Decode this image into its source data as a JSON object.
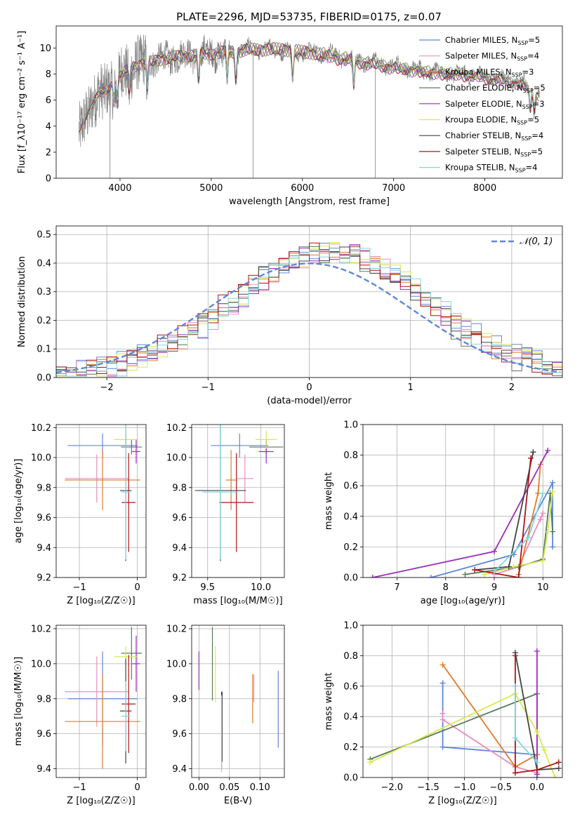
{
  "title": "PLATE=2296, MJD=53735, FIBERID=0175, z=0.07",
  "colors": {
    "chabrier_miles": "#5f86d8",
    "salpeter_miles": "#e88fbf",
    "kroupa_miles": "#e07b2a",
    "chabrier_elodie": "#5a7a5a",
    "salpeter_elodie": "#9b30b8",
    "kroupa_elodie": "#d6ea50",
    "chabrier_stelib": "#444444",
    "salpeter_stelib": "#b01515",
    "kroupa_stelib": "#7fd6e0",
    "data": "#808080"
  },
  "chart_data": [
    {
      "id": "spectrum",
      "type": "line",
      "xlabel": "wavelength [Angstrom, rest frame]",
      "ylabel": "Flux [f_λ10⁻¹⁷ erg cm⁻² s⁻¹ A⁻¹]",
      "xlim": [
        3300,
        8850
      ],
      "ylim": [
        0,
        11.7
      ],
      "xticks": [
        4000,
        5000,
        6000,
        7000,
        8000
      ],
      "yticks": [
        0,
        2,
        4,
        6,
        8,
        10
      ],
      "grid": false,
      "legend_position": "top-right",
      "legend": [
        {
          "pre": "Chabrier MILES, N",
          "sub": "SSP",
          "post": "=5",
          "color": "#5f86d8"
        },
        {
          "pre": "Salpeter MILES, N",
          "sub": "SSP",
          "post": "=4",
          "color": "#e88fbf"
        },
        {
          "pre": "Kroupa MILES, N",
          "sub": "SSP",
          "post": "=3",
          "color": "#e07b2a"
        },
        {
          "pre": "Chabrier ELODIE, N",
          "sub": "SSP",
          "post": "=5",
          "color": "#5a7a5a"
        },
        {
          "pre": "Salpeter ELODIE, N",
          "sub": "SSP",
          "post": "=3",
          "color": "#9b30b8"
        },
        {
          "pre": "Kroupa ELODIE, N",
          "sub": "SSP",
          "post": "=5",
          "color": "#d6ea50"
        },
        {
          "pre": "Chabrier STELIB, N",
          "sub": "SSP",
          "post": "=4",
          "color": "#444444"
        },
        {
          "pre": "Salpeter STELIB, N",
          "sub": "SSP",
          "post": "=5",
          "color": "#b01515"
        },
        {
          "pre": "Kroupa STELIB, N",
          "sub": "SSP",
          "post": "=4",
          "color": "#7fd6e0"
        }
      ],
      "continuum": [
        [
          3550,
          3.5
        ],
        [
          3650,
          5.2
        ],
        [
          3750,
          6.3
        ],
        [
          3850,
          6.8
        ],
        [
          3950,
          7.5
        ],
        [
          4100,
          8.5
        ],
        [
          4300,
          8.9
        ],
        [
          4500,
          9.2
        ],
        [
          4700,
          9.4
        ],
        [
          5000,
          9.6
        ],
        [
          5200,
          9.7
        ],
        [
          5500,
          9.9
        ],
        [
          5800,
          9.9
        ],
        [
          6000,
          9.7
        ],
        [
          6300,
          9.5
        ],
        [
          6600,
          9.1
        ],
        [
          7000,
          8.6
        ],
        [
          7400,
          8.2
        ],
        [
          7800,
          8.0
        ],
        [
          8200,
          7.6
        ],
        [
          8400,
          7.3
        ],
        [
          8600,
          6.4
        ]
      ],
      "absorption_lines": [
        3934,
        3969,
        4102,
        4300,
        4861,
        5175,
        5270,
        5892,
        6563,
        8498,
        8542,
        8662
      ],
      "spikes": [
        3890,
        5460,
        6800
      ]
    },
    {
      "id": "residual_histogram",
      "type": "histogram",
      "xlabel": "(data-model)/error",
      "ylabel": "Normed distribution",
      "xlim": [
        -2.5,
        2.5
      ],
      "ylim": [
        0,
        0.53
      ],
      "xticks": [
        -2,
        -1,
        0,
        1,
        2
      ],
      "yticks": [
        0.0,
        0.1,
        0.2,
        0.3,
        0.4,
        0.5
      ],
      "grid": true,
      "legend": "𝒩(0, 1)",
      "bin_width": 0.1
    },
    {
      "id": "age_vs_Z",
      "type": "scatter",
      "xlabel": "Z [log₁₀(Z/Z☉)]",
      "ylabel": "age  [log₁₀(age/yr)]",
      "xlim": [
        -1.4,
        0.15
      ],
      "ylim": [
        9.2,
        10.22
      ],
      "xticks": [
        -1,
        0
      ],
      "yticks": [
        9.2,
        9.4,
        9.6,
        9.8,
        10.0,
        10.2
      ],
      "points": [
        {
          "series": "Chabrier MILES",
          "x": -0.6,
          "xerr": 0.6,
          "y": 10.08,
          "yerr": 0.08
        },
        {
          "series": "Salpeter MILES",
          "x": -0.7,
          "xerr": 0.55,
          "y": 9.86,
          "yerr": 0.16
        },
        {
          "series": "Kroupa MILES",
          "x": -0.6,
          "xerr": 0.65,
          "y": 9.85,
          "yerr": 0.2
        },
        {
          "series": "Chabrier ELODIE",
          "x": -0.1,
          "xerr": 0.18,
          "y": 10.07,
          "yerr": 0.05
        },
        {
          "series": "Salpeter ELODIE",
          "x": -0.02,
          "xerr": 0.07,
          "y": 10.04,
          "yerr": 0.08
        },
        {
          "series": "Kroupa ELODIE",
          "x": -0.2,
          "xerr": 0.2,
          "y": 10.12,
          "yerr": 0.06
        },
        {
          "series": "Chabrier STELIB",
          "x": -0.2,
          "xerr": 0.1,
          "y": 9.78,
          "yerr": 0.47
        },
        {
          "series": "Salpeter STELIB",
          "x": -0.15,
          "xerr": 0.12,
          "y": 9.7,
          "yerr": 0.33
        },
        {
          "series": "Kroupa STELIB",
          "x": -0.2,
          "xerr": 0.08,
          "y": 9.77,
          "yerr": 0.45
        }
      ]
    },
    {
      "id": "age_vs_mass",
      "type": "scatter",
      "xlabel": "mass [log₁₀(M/M☉)]",
      "ylabel": "",
      "xlim": [
        9.35,
        10.22
      ],
      "ylim": [
        9.2,
        10.22
      ],
      "xticks": [
        9.5,
        10.0
      ],
      "yticks": [
        9.2,
        9.4,
        9.6,
        9.8,
        10.0,
        10.2
      ],
      "points": [
        {
          "series": "Chabrier MILES",
          "x": 9.8,
          "xerr": 0.27,
          "y": 10.08,
          "yerr": 0.08
        },
        {
          "series": "Salpeter MILES",
          "x": 9.85,
          "xerr": 0.08,
          "y": 9.86,
          "yerr": 0.16
        },
        {
          "series": "Kroupa MILES",
          "x": 9.72,
          "xerr": 0.05,
          "y": 9.85,
          "yerr": 0.2
        },
        {
          "series": "Chabrier ELODIE",
          "x": 10.05,
          "xerr": 0.16,
          "y": 10.07,
          "yerr": 0.05
        },
        {
          "series": "Salpeter ELODIE",
          "x": 10.05,
          "xerr": 0.07,
          "y": 10.04,
          "yerr": 0.08
        },
        {
          "series": "Kroupa ELODIE",
          "x": 10.05,
          "xerr": 0.1,
          "y": 10.12,
          "yerr": 0.06
        },
        {
          "series": "Chabrier STELIB",
          "x": 9.62,
          "xerr": 0.24,
          "y": 9.78,
          "yerr": 0.47
        },
        {
          "series": "Salpeter STELIB",
          "x": 9.77,
          "xerr": 0.16,
          "y": 9.7,
          "yerr": 0.33
        },
        {
          "series": "Kroupa STELIB",
          "x": 9.62,
          "xerr": 0.17,
          "y": 9.77,
          "yerr": 0.45
        }
      ]
    },
    {
      "id": "weight_vs_age",
      "type": "line",
      "xlabel": "age  [log₁₀(age/yr)]",
      "ylabel": "mass weight",
      "xlim": [
        6.3,
        10.4
      ],
      "ylim": [
        0,
        1.0
      ],
      "xticks": [
        7,
        8,
        9,
        10
      ],
      "yticks": [
        0.0,
        0.2,
        0.4,
        0.6,
        0.8,
        1.0
      ],
      "series": [
        {
          "name": "Chabrier MILES",
          "points": [
            [
              7.7,
              0.0
            ],
            [
              9.4,
              0.15
            ],
            [
              10.2,
              0.62
            ],
            [
              10.2,
              0.2
            ]
          ]
        },
        {
          "name": "Salpeter MILES",
          "points": [
            [
              9.0,
              0.02
            ],
            [
              9.5,
              0.07
            ],
            [
              10.0,
              0.42
            ],
            [
              9.95,
              0.38
            ]
          ]
        },
        {
          "name": "Kroupa MILES",
          "points": [
            [
              9.5,
              0.02
            ],
            [
              9.9,
              0.55
            ],
            [
              9.95,
              0.74
            ]
          ]
        },
        {
          "name": "Chabrier ELODIE",
          "points": [
            [
              8.4,
              0.02
            ],
            [
              9.5,
              0.07
            ],
            [
              10.0,
              0.12
            ],
            [
              10.15,
              0.55
            ],
            [
              10.2,
              0.3
            ]
          ]
        },
        {
          "name": "Salpeter ELODIE",
          "points": [
            [
              6.5,
              0.0
            ],
            [
              9.0,
              0.17
            ],
            [
              10.1,
              0.83
            ]
          ]
        },
        {
          "name": "Kroupa ELODIE",
          "points": [
            [
              8.8,
              0.02
            ],
            [
              9.4,
              0.07
            ],
            [
              10.0,
              0.11
            ],
            [
              10.1,
              0.3
            ],
            [
              10.2,
              0.56
            ]
          ]
        },
        {
          "name": "Chabrier STELIB",
          "points": [
            [
              8.6,
              0.05
            ],
            [
              9.3,
              0.07
            ],
            [
              9.8,
              0.82
            ]
          ]
        },
        {
          "name": "Salpeter STELIB",
          "points": [
            [
              8.6,
              0.05
            ],
            [
              9.5,
              0.0
            ],
            [
              9.75,
              0.78
            ]
          ]
        },
        {
          "name": "Kroupa STELIB",
          "points": [
            [
              9.0,
              0.04
            ],
            [
              9.7,
              0.26
            ],
            [
              10.0,
              0.55
            ]
          ]
        }
      ]
    },
    {
      "id": "mass_vs_Z",
      "type": "scatter",
      "xlabel": "Z [log₁₀(Z/Z☉)]",
      "ylabel": "mass [log₁₀(M/M☉)]",
      "xlim": [
        -1.4,
        0.15
      ],
      "ylim": [
        9.35,
        10.22
      ],
      "xticks": [
        -1,
        0
      ],
      "yticks": [
        9.4,
        9.6,
        9.8,
        10.0,
        10.2
      ],
      "points": [
        {
          "series": "Chabrier MILES",
          "x": -0.6,
          "xerr": 0.6,
          "y": 9.8,
          "yerr": 0.27
        },
        {
          "series": "Salpeter MILES",
          "x": -0.7,
          "xerr": 0.55,
          "y": 9.84,
          "yerr": 0.2
        },
        {
          "series": "Kroupa MILES",
          "x": -0.6,
          "xerr": 0.65,
          "y": 9.67,
          "yerr": 0.27
        },
        {
          "series": "Chabrier ELODIE",
          "x": -0.1,
          "xerr": 0.18,
          "y": 10.06,
          "yerr": 0.15
        },
        {
          "series": "Salpeter ELODIE",
          "x": -0.02,
          "xerr": 0.07,
          "y": 10.0,
          "yerr": 0.16
        },
        {
          "series": "Kroupa ELODIE",
          "x": -0.2,
          "xerr": 0.2,
          "y": 10.04,
          "yerr": 0.06
        },
        {
          "series": "Chabrier STELIB",
          "x": -0.2,
          "xerr": 0.1,
          "y": 9.73,
          "yerr": 0.3
        },
        {
          "series": "Salpeter STELIB",
          "x": -0.15,
          "xerr": 0.12,
          "y": 9.77,
          "yerr": 0.28
        },
        {
          "series": "Kroupa STELIB",
          "x": -0.2,
          "xerr": 0.08,
          "y": 9.7,
          "yerr": 0.2
        }
      ]
    },
    {
      "id": "mass_vs_EBV",
      "type": "scatter",
      "xlabel": "E(B-V)",
      "ylabel": "",
      "xlim": [
        -0.012,
        0.14
      ],
      "ylim": [
        9.35,
        10.22
      ],
      "xticks": [
        0.0,
        0.05,
        0.1
      ],
      "yticks": [
        9.4,
        9.6,
        9.8,
        10.0,
        10.2
      ],
      "points": [
        {
          "series": "Chabrier MILES",
          "x": 0.13,
          "y": 9.74,
          "yerr": 0.22
        },
        {
          "series": "Salpeter MILES",
          "x": 0.09,
          "y": 9.86,
          "yerr": 0.08
        },
        {
          "series": "Kroupa MILES",
          "x": 0.088,
          "y": 9.8,
          "yerr": 0.14
        },
        {
          "series": "Chabrier ELODIE",
          "x": 0.022,
          "y": 10.0,
          "yerr": 0.21
        },
        {
          "series": "Salpeter ELODIE",
          "x": 0.0,
          "y": 9.96,
          "yerr": 0.11
        },
        {
          "series": "Kroupa ELODIE",
          "x": 0.027,
          "y": 9.94,
          "yerr": 0.16
        },
        {
          "series": "Chabrier STELIB",
          "x": 0.038,
          "y": 9.64,
          "yerr": 0.2
        },
        {
          "series": "Salpeter STELIB",
          "x": 0.037,
          "y": 9.62,
          "yerr": 0.22
        },
        {
          "series": "Kroupa STELIB",
          "x": 0.037,
          "y": 9.6,
          "yerr": 0.22
        }
      ]
    },
    {
      "id": "weight_vs_Z",
      "type": "line",
      "xlabel": "Z [log₁₀(Z/Z☉)]",
      "ylabel": "mass weight",
      "xlim": [
        -2.4,
        0.35
      ],
      "ylim": [
        0,
        1.0
      ],
      "xticks": [
        -2.0,
        -1.5,
        -1.0,
        -0.5,
        0.0
      ],
      "yticks": [
        0.0,
        0.2,
        0.4,
        0.6,
        0.8,
        1.0
      ],
      "series": [
        {
          "name": "Chabrier MILES",
          "points": [
            [
              -1.3,
              0.62
            ],
            [
              -1.3,
              0.2
            ],
            [
              0.0,
              0.15
            ],
            [
              0.0,
              0.0
            ]
          ]
        },
        {
          "name": "Salpeter MILES",
          "points": [
            [
              -1.3,
              0.42
            ],
            [
              -1.3,
              0.38
            ],
            [
              -0.3,
              0.07
            ],
            [
              0.0,
              0.03
            ]
          ]
        },
        {
          "name": "Kroupa MILES",
          "points": [
            [
              -1.3,
              0.74
            ],
            [
              -0.3,
              0.07
            ],
            [
              0.0,
              0.15
            ]
          ]
        },
        {
          "name": "Chabrier ELODIE",
          "points": [
            [
              -2.3,
              0.12
            ],
            [
              0.0,
              0.55
            ],
            [
              0.0,
              0.05
            ]
          ]
        },
        {
          "name": "Salpeter ELODIE",
          "points": [
            [
              0.0,
              0.83
            ],
            [
              0.0,
              0.02
            ]
          ]
        },
        {
          "name": "Kroupa ELODIE",
          "points": [
            [
              -2.3,
              0.1
            ],
            [
              -0.3,
              0.55
            ],
            [
              0.0,
              0.3
            ],
            [
              0.1,
              0.18
            ],
            [
              0.25,
              0.0
            ]
          ]
        },
        {
          "name": "Chabrier STELIB",
          "points": [
            [
              -0.3,
              0.82
            ],
            [
              0.0,
              0.05
            ],
            [
              0.3,
              0.06
            ]
          ]
        },
        {
          "name": "Salpeter STELIB",
          "points": [
            [
              -0.3,
              0.8
            ],
            [
              -0.3,
              0.03
            ],
            [
              0.0,
              0.05
            ],
            [
              0.3,
              0.1
            ]
          ]
        },
        {
          "name": "Kroupa STELIB",
          "points": [
            [
              -0.3,
              0.6
            ],
            [
              -0.3,
              0.26
            ],
            [
              0.0,
              0.1
            ]
          ]
        }
      ]
    }
  ]
}
